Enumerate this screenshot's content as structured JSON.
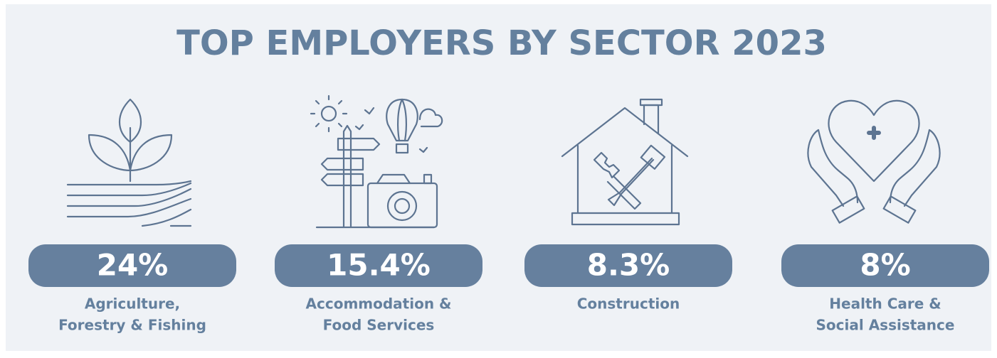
{
  "title": "TOP EMPLOYERS BY SECTOR 2023",
  "sectors": [
    {
      "value": "24%",
      "label": [
        "Agriculture,",
        "Forestry & Fishing"
      ]
    },
    {
      "value": "15.4%",
      "label": [
        "Accommodation &",
        "Food Services"
      ]
    },
    {
      "value": "8.3%",
      "label": [
        "Construction"
      ]
    },
    {
      "value": "8%",
      "label": [
        "Health Care &",
        "Social Assistance"
      ]
    }
  ]
}
